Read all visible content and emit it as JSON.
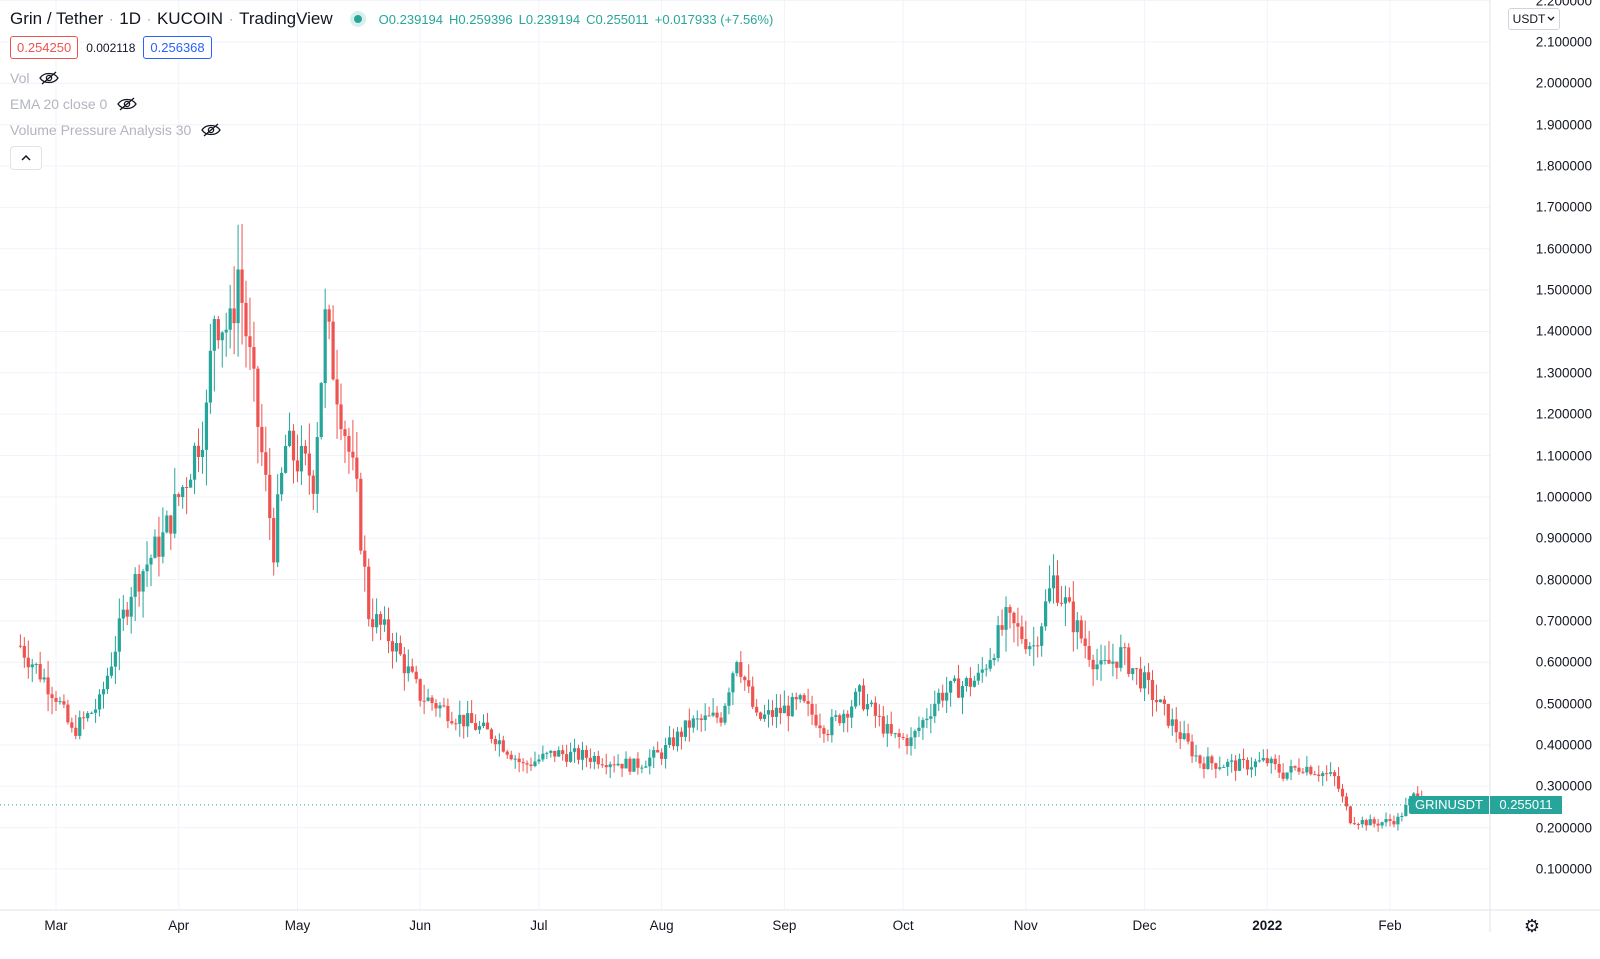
{
  "header": {
    "pair": "Grin / Tether",
    "interval": "1D",
    "exchange": "KUCOIN",
    "brand": "TradingView",
    "open_label": "O",
    "open_value": "0.239194",
    "high_label": "H",
    "high_value": "0.259396",
    "low_label": "L",
    "low_value": "0.239194",
    "close_label": "C",
    "close_value": "0.255011",
    "change": "+0.017933 (+7.56%)"
  },
  "quote": {
    "bid": "0.254250",
    "spread": "0.002118",
    "ask": "0.256368"
  },
  "indicators": [
    {
      "label": "Vol"
    },
    {
      "label": "EMA 20 close 0"
    },
    {
      "label": "Volume Pressure Analysis 30"
    }
  ],
  "currency_select": "USDT",
  "price_scale": {
    "ticks": [
      "2.200000",
      "2.100000",
      "2.000000",
      "1.900000",
      "1.800000",
      "1.700000",
      "1.600000",
      "1.500000",
      "1.400000",
      "1.300000",
      "1.200000",
      "1.100000",
      "1.000000",
      "0.900000",
      "0.800000",
      "0.700000",
      "0.600000",
      "0.500000",
      "0.400000",
      "0.300000",
      "0.200000",
      "0.100000"
    ],
    "tick_values": [
      2.2,
      2.1,
      2.0,
      1.9,
      1.8,
      1.7,
      1.6,
      1.5,
      1.4,
      1.3,
      1.2,
      1.1,
      1.0,
      0.9,
      0.8,
      0.7,
      0.6,
      0.5,
      0.4,
      0.3,
      0.2,
      0.1
    ]
  },
  "last_price": {
    "symbol": "GRINUSDT",
    "value": "0.255011",
    "price": 0.255011
  },
  "time_scale": {
    "labels": [
      {
        "text": "Mar",
        "bold": false
      },
      {
        "text": "Apr",
        "bold": false
      },
      {
        "text": "May",
        "bold": false
      },
      {
        "text": "Jun",
        "bold": false
      },
      {
        "text": "Jul",
        "bold": false
      },
      {
        "text": "Aug",
        "bold": false
      },
      {
        "text": "Sep",
        "bold": false
      },
      {
        "text": "Oct",
        "bold": false
      },
      {
        "text": "Nov",
        "bold": false
      },
      {
        "text": "Dec",
        "bold": false
      },
      {
        "text": "2022",
        "bold": true
      },
      {
        "text": "Feb",
        "bold": false
      }
    ]
  },
  "colors": {
    "up": "#26a69a",
    "down": "#ef5350",
    "grid": "#f0f3fa"
  },
  "chart_data": {
    "type": "candlestick",
    "symbol": "GRINUSDT",
    "interval": "1D",
    "ylim": [
      0.0,
      2.2
    ],
    "series_close_approx": [
      {
        "x": "2021-02-20",
        "y": 0.64
      },
      {
        "x": "2021-03-01",
        "y": 0.52
      },
      {
        "x": "2021-03-05",
        "y": 0.43
      },
      {
        "x": "2021-03-12",
        "y": 0.5
      },
      {
        "x": "2021-03-20",
        "y": 0.78
      },
      {
        "x": "2021-03-28",
        "y": 0.9
      },
      {
        "x": "2021-04-03",
        "y": 1.05
      },
      {
        "x": "2021-04-08",
        "y": 1.2
      },
      {
        "x": "2021-04-10",
        "y": 1.45
      },
      {
        "x": "2021-04-14",
        "y": 1.4
      },
      {
        "x": "2021-04-16",
        "y": 1.55
      },
      {
        "x": "2021-04-20",
        "y": 1.25
      },
      {
        "x": "2021-04-25",
        "y": 0.88
      },
      {
        "x": "2021-04-28",
        "y": 1.12
      },
      {
        "x": "2021-05-05",
        "y": 1.05
      },
      {
        "x": "2021-05-08",
        "y": 1.42
      },
      {
        "x": "2021-05-12",
        "y": 1.22
      },
      {
        "x": "2021-05-16",
        "y": 1.0
      },
      {
        "x": "2021-05-19",
        "y": 0.72
      },
      {
        "x": "2021-05-25",
        "y": 0.65
      },
      {
        "x": "2021-06-01",
        "y": 0.52
      },
      {
        "x": "2021-06-10",
        "y": 0.47
      },
      {
        "x": "2021-06-20",
        "y": 0.42
      },
      {
        "x": "2021-06-27",
        "y": 0.35
      },
      {
        "x": "2021-07-05",
        "y": 0.38
      },
      {
        "x": "2021-07-15",
        "y": 0.37
      },
      {
        "x": "2021-07-25",
        "y": 0.35
      },
      {
        "x": "2021-08-01",
        "y": 0.38
      },
      {
        "x": "2021-08-08",
        "y": 0.45
      },
      {
        "x": "2021-08-16",
        "y": 0.47
      },
      {
        "x": "2021-08-20",
        "y": 0.62
      },
      {
        "x": "2021-08-25",
        "y": 0.46
      },
      {
        "x": "2021-09-05",
        "y": 0.5
      },
      {
        "x": "2021-09-12",
        "y": 0.44
      },
      {
        "x": "2021-09-20",
        "y": 0.52
      },
      {
        "x": "2021-09-28",
        "y": 0.42
      },
      {
        "x": "2021-10-03",
        "y": 0.41
      },
      {
        "x": "2021-10-10",
        "y": 0.52
      },
      {
        "x": "2021-10-20",
        "y": 0.56
      },
      {
        "x": "2021-10-27",
        "y": 0.7
      },
      {
        "x": "2021-11-03",
        "y": 0.64
      },
      {
        "x": "2021-11-08",
        "y": 0.8
      },
      {
        "x": "2021-11-15",
        "y": 0.66
      },
      {
        "x": "2021-11-20",
        "y": 0.58
      },
      {
        "x": "2021-11-25",
        "y": 0.62
      },
      {
        "x": "2021-12-01",
        "y": 0.55
      },
      {
        "x": "2021-12-08",
        "y": 0.45
      },
      {
        "x": "2021-12-15",
        "y": 0.36
      },
      {
        "x": "2021-12-25",
        "y": 0.35
      },
      {
        "x": "2022-01-01",
        "y": 0.36
      },
      {
        "x": "2022-01-05",
        "y": 0.33
      },
      {
        "x": "2022-01-10",
        "y": 0.35
      },
      {
        "x": "2022-01-18",
        "y": 0.32
      },
      {
        "x": "2022-01-22",
        "y": 0.22
      },
      {
        "x": "2022-01-28",
        "y": 0.21
      },
      {
        "x": "2022-02-03",
        "y": 0.22
      },
      {
        "x": "2022-02-08",
        "y": 0.29
      },
      {
        "x": "2022-02-10",
        "y": 0.255011
      }
    ],
    "last_candle": {
      "open": 0.239194,
      "high": 0.259396,
      "low": 0.239194,
      "close": 0.255011
    }
  }
}
